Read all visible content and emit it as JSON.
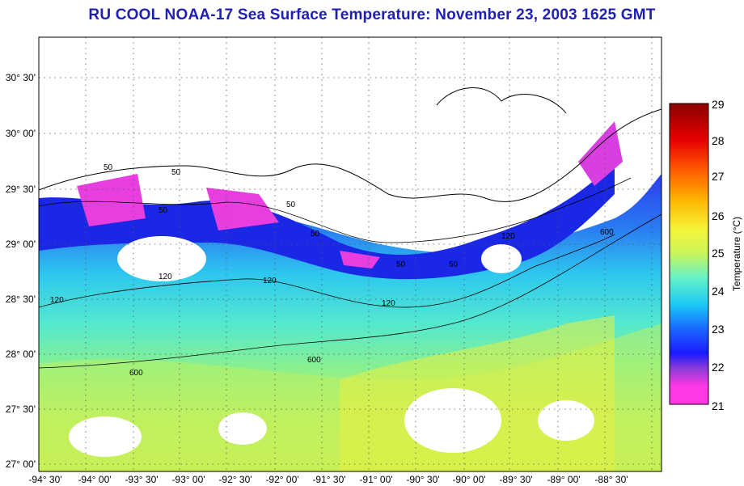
{
  "title": "RU COOL  NOAA-17  Sea Surface Temperature:  November 23, 2003 1625 GMT",
  "map": {
    "lon_labels": [
      "-94° 30'",
      "-94° 00'",
      "-93° 30'",
      "-93° 00'",
      "-92° 30'",
      "-92° 00'",
      "-91° 30'",
      "-91° 00'",
      "-90° 30'",
      "-90° 00'",
      "-89° 30'",
      "-89° 00'",
      "-88° 30'"
    ],
    "lat_labels": [
      "30° 30'",
      "30° 00'",
      "29° 30'",
      "29° 00'",
      "28° 30'",
      "28° 00'",
      "27° 30'",
      "27° 00'"
    ],
    "contour_labels": [
      "50",
      "50",
      "50",
      "50",
      "50",
      "50",
      "50",
      "120",
      "120",
      "120",
      "120",
      "120",
      "600",
      "600",
      "600"
    ]
  },
  "colorbar": {
    "label": "Temperature (°C)",
    "ticks": [
      "29",
      "28",
      "27",
      "26",
      "25",
      "24",
      "23",
      "22",
      "21"
    ],
    "colors": [
      "#ff38e6",
      "#8a3bd6",
      "#1a1aff",
      "#1a66ff",
      "#19c8f5",
      "#66f2c8",
      "#c8f55a",
      "#f5f53a",
      "#ffb400",
      "#ff5a00",
      "#e60000",
      "#8a0000"
    ]
  }
}
